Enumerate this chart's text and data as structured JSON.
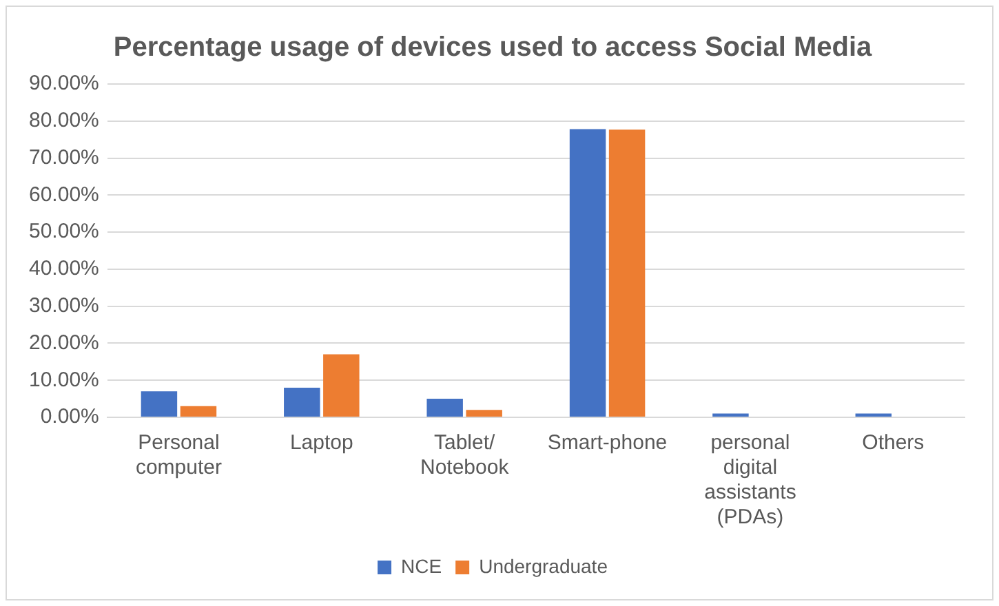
{
  "chart_data": {
    "type": "bar",
    "title": "Percentage usage of devices used to access Social Media",
    "categories": [
      "Personal computer",
      "Laptop",
      "Tablet/ Notebook",
      "Smart-phone",
      "personal digital assistants (PDAs)",
      "Others"
    ],
    "series": [
      {
        "name": "NCE",
        "color": "#4472c4",
        "values": [
          7.0,
          8.0,
          5.0,
          77.8,
          1.0,
          1.0
        ]
      },
      {
        "name": "Undergraduate",
        "color": "#ed7d31",
        "values": [
          3.0,
          17.0,
          2.0,
          77.7,
          0,
          0
        ]
      }
    ],
    "ylim": [
      0,
      90
    ],
    "yticks": [
      {
        "value": 0,
        "label": "0.00%"
      },
      {
        "value": 10,
        "label": "10.00%"
      },
      {
        "value": 20,
        "label": "20.00%"
      },
      {
        "value": 30,
        "label": "30.00%"
      },
      {
        "value": 40,
        "label": "40.00%"
      },
      {
        "value": 50,
        "label": "50.00%"
      },
      {
        "value": 60,
        "label": "60.00%"
      },
      {
        "value": 70,
        "label": "70.00%"
      },
      {
        "value": 80,
        "label": "80.00%"
      },
      {
        "value": 90,
        "label": "90.00%"
      }
    ],
    "grid": "y",
    "legend": "bottom"
  }
}
